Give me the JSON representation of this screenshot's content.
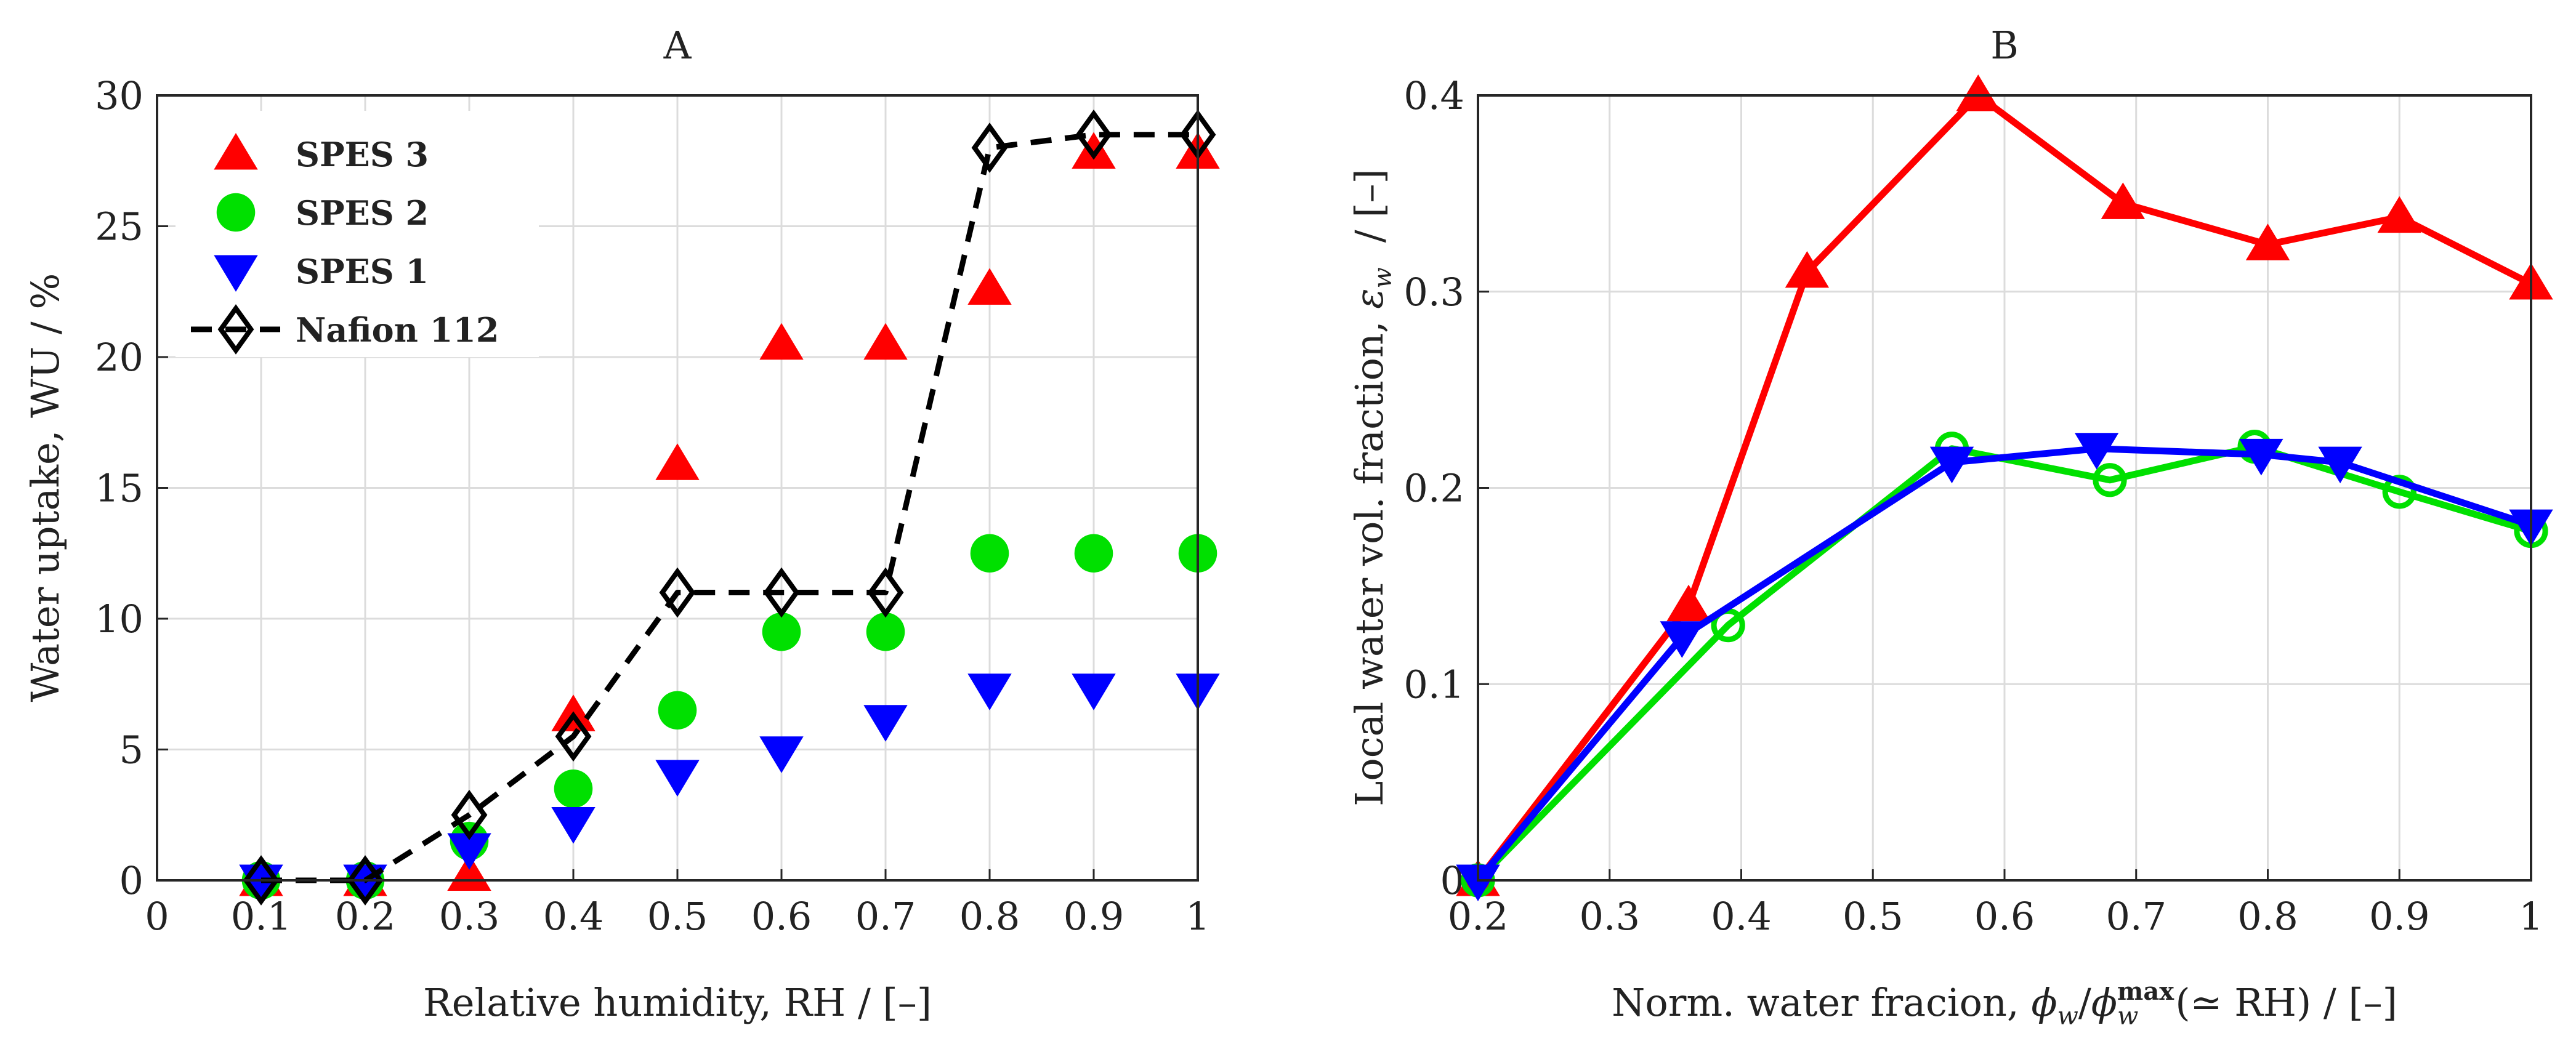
{
  "chart_data": [
    {
      "type": "scatter",
      "title": "A",
      "xlabel": "Relative humidity, RH   /   [–]",
      "ylabel": "Water uptake, WU   /   %",
      "xlim": [
        0,
        1
      ],
      "ylim": [
        0,
        30
      ],
      "grid": true,
      "x_ticks": [
        "0",
        "0.1",
        "0.2",
        "0.3",
        "0.4",
        "0.5",
        "0.6",
        "0.7",
        "0.8",
        "0.9",
        "1"
      ],
      "y_ticks": [
        "0",
        "5",
        "10",
        "15",
        "20",
        "25",
        "30"
      ],
      "legend_position": "top-left",
      "series": [
        {
          "name": "SPES 3",
          "marker": "triangle-up",
          "color": "#ff0000",
          "line": "none",
          "x": [
            0.1,
            0.2,
            0.3,
            0.4,
            0.5,
            0.6,
            0.7,
            0.8,
            0.9,
            1.0
          ],
          "values": [
            0,
            0,
            0.2,
            6.3,
            15.9,
            20.5,
            20.5,
            22.6,
            27.8,
            27.8
          ]
        },
        {
          "name": "SPES 2",
          "marker": "circle",
          "color": "#00e000",
          "line": "none",
          "x": [
            0.1,
            0.2,
            0.3,
            0.4,
            0.5,
            0.6,
            0.7,
            0.8,
            0.9,
            1.0
          ],
          "values": [
            0,
            0,
            1.5,
            3.5,
            6.5,
            9.5,
            9.5,
            12.5,
            12.5,
            12.5
          ]
        },
        {
          "name": "SPES 1",
          "marker": "triangle-down",
          "color": "#0000ff",
          "line": "none",
          "x": [
            0.1,
            0.2,
            0.3,
            0.4,
            0.5,
            0.6,
            0.7,
            0.8,
            0.9,
            1.0
          ],
          "values": [
            0,
            0,
            1.2,
            2.2,
            4.0,
            4.9,
            6.1,
            7.3,
            7.3,
            7.3
          ]
        },
        {
          "name": "Nafion 112",
          "marker": "diamond-open",
          "color": "#000000",
          "line": "dashed",
          "x": [
            0.1,
            0.2,
            0.3,
            0.4,
            0.5,
            0.6,
            0.7,
            0.8,
            0.9,
            1.0
          ],
          "values": [
            0,
            0,
            2.5,
            5.5,
            11.0,
            11.0,
            11.0,
            28.0,
            28.5,
            28.5
          ]
        }
      ]
    },
    {
      "type": "line",
      "title": "B",
      "xlabel_prefix": "Norm. water fracion, ",
      "xlabel_phi": "ϕ",
      "xlabel_w": "w",
      "xlabel_slash": "/",
      "xlabel_max": "max",
      "xlabel_suffix": "(≃ RH) / [–]",
      "ylabel_prefix": "Local water vol. fraction, ",
      "ylabel_eps": "ε",
      "ylabel_w": "w",
      "ylabel_suffix": "/   [–]",
      "xlim": [
        0.2,
        1.0
      ],
      "ylim": [
        0,
        0.4
      ],
      "grid": true,
      "x_ticks": [
        "0.2",
        "0.3",
        "0.4",
        "0.5",
        "0.6",
        "0.7",
        "0.8",
        "0.9",
        "1"
      ],
      "y_ticks": [
        "0",
        "0.1",
        "0.2",
        "0.3",
        "0.4"
      ],
      "series": [
        {
          "name": "SPES 3",
          "marker": "triangle-up",
          "color": "#ff0000",
          "x": [
            0.2,
            0.36,
            0.45,
            0.58,
            0.69,
            0.8,
            0.9,
            1.0
          ],
          "values": [
            0,
            0.14,
            0.31,
            0.4,
            0.345,
            0.324,
            0.338,
            0.304
          ]
        },
        {
          "name": "SPES 2",
          "marker": "circle-open",
          "color": "#00e000",
          "x": [
            0.2,
            0.39,
            0.56,
            0.68,
            0.79,
            0.9,
            1.0
          ],
          "values": [
            0,
            0.13,
            0.22,
            0.204,
            0.221,
            0.198,
            0.178
          ]
        },
        {
          "name": "SPES 1",
          "marker": "triangle-down",
          "color": "#0000ff",
          "x": [
            0.2,
            0.355,
            0.56,
            0.67,
            0.795,
            0.855,
            1.0
          ],
          "values": [
            0,
            0.124,
            0.213,
            0.22,
            0.217,
            0.213,
            0.181
          ]
        }
      ]
    }
  ]
}
